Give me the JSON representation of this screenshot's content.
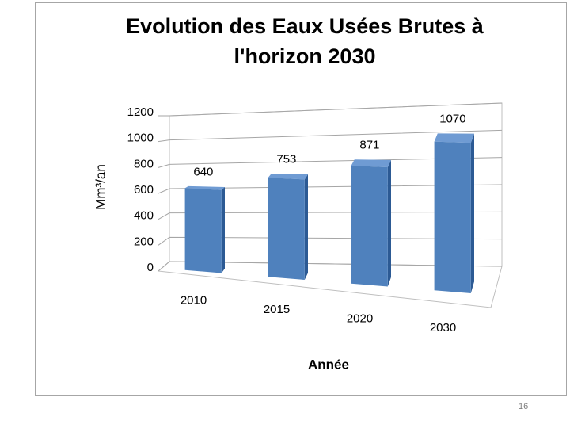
{
  "chart_data": {
    "type": "bar3d",
    "title": "Evolution des Eaux Usées Brutes à l'horizon 2030",
    "categories": [
      "2010",
      "2015",
      "2020",
      "2030"
    ],
    "values": [
      640,
      753,
      871,
      1070
    ],
    "color": "#4f81bd",
    "ylim": [
      0,
      1200
    ],
    "yticks": [
      0,
      200,
      400,
      600,
      800,
      1000,
      1200
    ],
    "grid": true,
    "x_label": "Année",
    "y_label": "Mm³/an",
    "page_number": "16"
  }
}
